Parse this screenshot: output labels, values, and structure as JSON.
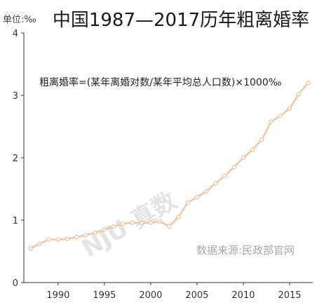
{
  "chart_data": {
    "type": "line",
    "title": "中国1987—2017历年粗离婚率",
    "unit_label": "单位:‰",
    "annotation": "粗离婚率=(某年离婚对数/某年平均总人口数)×1000‰",
    "source": "数据来源:民政部官网",
    "watermark": "NJU 真数",
    "x": [
      1987,
      1988,
      1989,
      1990,
      1991,
      1992,
      1993,
      1994,
      1995,
      1996,
      1997,
      1998,
      1999,
      2000,
      2001,
      2002,
      2003,
      2004,
      2005,
      2006,
      2007,
      2008,
      2009,
      2010,
      2011,
      2012,
      2013,
      2014,
      2015,
      2016,
      2017
    ],
    "values": [
      0.55,
      0.62,
      0.69,
      0.69,
      0.7,
      0.73,
      0.76,
      0.8,
      0.85,
      0.9,
      0.94,
      0.96,
      0.96,
      0.96,
      0.98,
      0.9,
      1.05,
      1.28,
      1.37,
      1.46,
      1.59,
      1.71,
      1.85,
      2.0,
      2.13,
      2.29,
      2.58,
      2.67,
      2.79,
      3.02,
      3.2
    ],
    "xticks": [
      "1990",
      "1995",
      "2000",
      "2005",
      "2010",
      "2015"
    ],
    "yticks": [
      "0",
      "1",
      "2",
      "3",
      "4"
    ],
    "xlim": [
      1986.3,
      2017.5
    ],
    "ylim": [
      0,
      4
    ],
    "line_color": "#f2c4a2",
    "marker_color": "#ffffff",
    "grid": false
  }
}
